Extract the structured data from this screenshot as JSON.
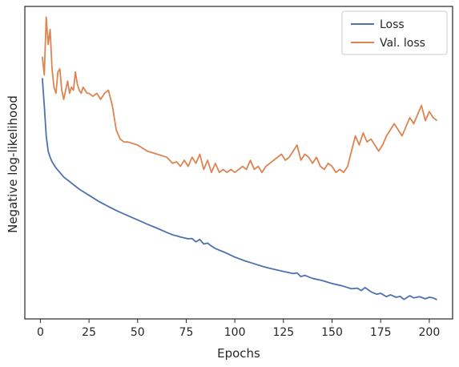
{
  "chart_data": {
    "type": "line",
    "title": "",
    "xlabel": "Epochs",
    "ylabel": "Negative log-likelihood",
    "xlim": [
      -8,
      212
    ],
    "ylim": [
      0,
      1
    ],
    "y_scale_note": "",
    "x_ticks": [
      0,
      25,
      50,
      75,
      100,
      125,
      150,
      175,
      200
    ],
    "y_ticks_labeled": false,
    "grid": false,
    "legend_position": "top-right",
    "series": [
      {
        "name": "Loss",
        "color": "#4c72b0",
        "x": [
          1,
          2,
          3,
          4,
          5,
          6,
          8,
          10,
          12,
          14,
          16,
          18,
          20,
          25,
          30,
          35,
          40,
          45,
          50,
          55,
          60,
          65,
          68,
          70,
          72,
          74,
          76,
          78,
          80,
          82,
          84,
          86,
          88,
          90,
          95,
          100,
          105,
          110,
          115,
          120,
          125,
          130,
          132,
          134,
          136,
          140,
          145,
          150,
          155,
          160,
          163,
          165,
          167,
          170,
          173,
          175,
          178,
          180,
          183,
          185,
          187,
          190,
          192,
          195,
          198,
          200,
          202,
          204
        ],
        "y": [
          0.77,
          0.68,
          0.58,
          0.53,
          0.51,
          0.495,
          0.475,
          0.46,
          0.445,
          0.435,
          0.425,
          0.415,
          0.405,
          0.385,
          0.365,
          0.348,
          0.332,
          0.318,
          0.304,
          0.29,
          0.277,
          0.263,
          0.255,
          0.252,
          0.248,
          0.245,
          0.242,
          0.243,
          0.232,
          0.24,
          0.225,
          0.228,
          0.218,
          0.21,
          0.197,
          0.182,
          0.17,
          0.16,
          0.15,
          0.142,
          0.135,
          0.128,
          0.13,
          0.118,
          0.122,
          0.112,
          0.105,
          0.095,
          0.088,
          0.078,
          0.08,
          0.072,
          0.082,
          0.068,
          0.06,
          0.063,
          0.052,
          0.058,
          0.05,
          0.053,
          0.043,
          0.055,
          0.048,
          0.052,
          0.045,
          0.05,
          0.048,
          0.042
        ]
      },
      {
        "name": "Val. loss",
        "color": "#dd8452",
        "x": [
          1,
          2,
          3,
          4,
          5,
          6,
          7,
          8,
          9,
          10,
          11,
          12,
          13,
          14,
          15,
          16,
          17,
          18,
          19,
          20,
          21,
          22,
          23,
          24,
          25,
          27,
          29,
          31,
          33,
          35,
          37,
          39,
          41,
          43,
          45,
          50,
          55,
          60,
          65,
          68,
          70,
          72,
          74,
          76,
          78,
          80,
          82,
          84,
          86,
          88,
          90,
          92,
          94,
          96,
          98,
          100,
          102,
          104,
          106,
          108,
          110,
          112,
          114,
          116,
          118,
          120,
          122,
          124,
          126,
          128,
          130,
          132,
          134,
          136,
          138,
          140,
          142,
          144,
          146,
          148,
          150,
          152,
          154,
          156,
          158,
          160,
          162,
          164,
          166,
          168,
          170,
          172,
          174,
          176,
          178,
          180,
          182,
          184,
          186,
          188,
          190,
          192,
          194,
          196,
          198,
          200,
          202,
          204
        ],
        "y": [
          0.84,
          0.78,
          0.97,
          0.88,
          0.93,
          0.8,
          0.74,
          0.72,
          0.79,
          0.8,
          0.73,
          0.7,
          0.73,
          0.76,
          0.72,
          0.74,
          0.73,
          0.79,
          0.75,
          0.73,
          0.72,
          0.74,
          0.73,
          0.72,
          0.72,
          0.71,
          0.72,
          0.7,
          0.72,
          0.73,
          0.68,
          0.6,
          0.57,
          0.56,
          0.56,
          0.55,
          0.53,
          0.52,
          0.51,
          0.49,
          0.495,
          0.48,
          0.5,
          0.48,
          0.51,
          0.49,
          0.52,
          0.47,
          0.5,
          0.46,
          0.49,
          0.46,
          0.47,
          0.46,
          0.47,
          0.46,
          0.47,
          0.48,
          0.47,
          0.5,
          0.47,
          0.48,
          0.46,
          0.48,
          0.49,
          0.5,
          0.51,
          0.52,
          0.5,
          0.51,
          0.53,
          0.55,
          0.5,
          0.52,
          0.51,
          0.49,
          0.51,
          0.48,
          0.47,
          0.49,
          0.48,
          0.46,
          0.47,
          0.46,
          0.48,
          0.53,
          0.58,
          0.55,
          0.59,
          0.56,
          0.57,
          0.55,
          0.53,
          0.55,
          0.58,
          0.6,
          0.62,
          0.6,
          0.58,
          0.61,
          0.64,
          0.62,
          0.65,
          0.68,
          0.63,
          0.66,
          0.64,
          0.63
        ]
      }
    ]
  }
}
